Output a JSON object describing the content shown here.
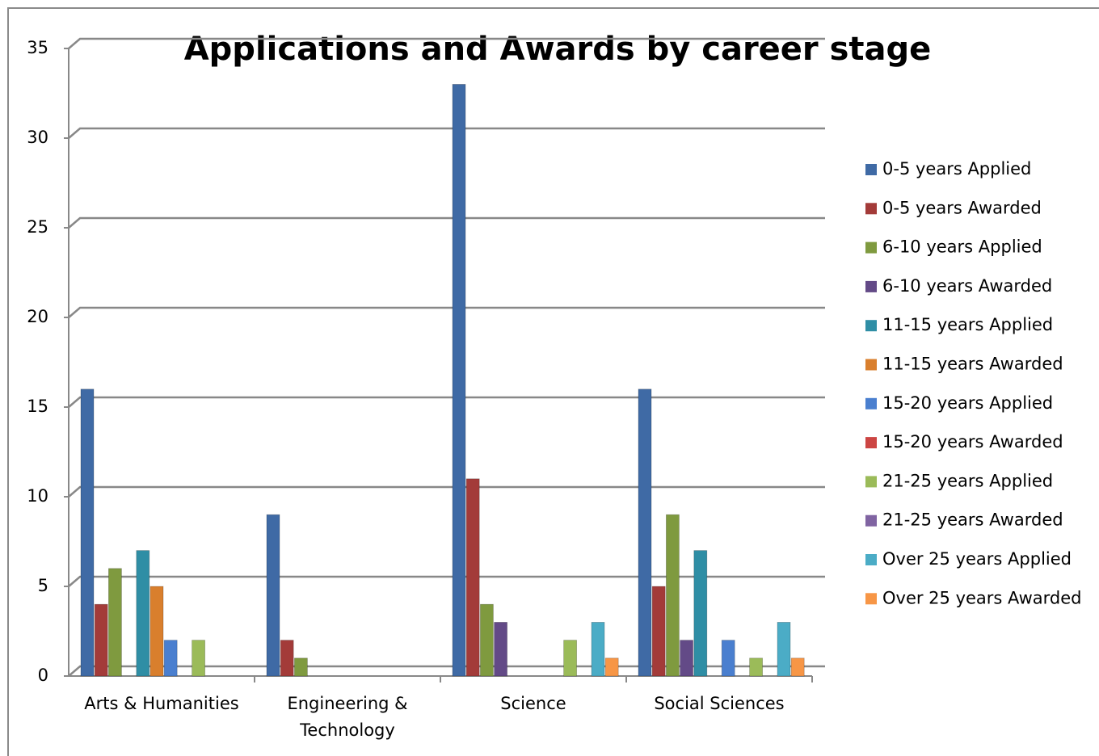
{
  "chart_data": {
    "type": "bar",
    "title": "Applications and Awards by career stage",
    "categories": [
      "Arts & Humanities",
      "Engineering & Technology",
      "Science",
      "Social Sciences"
    ],
    "series": [
      {
        "name": "0-5 years Applied",
        "color": "#3f6aa5",
        "values": [
          16,
          9,
          33,
          16
        ]
      },
      {
        "name": "0-5 years Awarded",
        "color": "#a33b39",
        "values": [
          4,
          2,
          11,
          5
        ]
      },
      {
        "name": "6-10 years Applied",
        "color": "#7f9a3f",
        "values": [
          6,
          1,
          4,
          9
        ]
      },
      {
        "name": "6-10 years Awarded",
        "color": "#634a87",
        "values": [
          0,
          0,
          3,
          2
        ]
      },
      {
        "name": "11-15 years Applied",
        "color": "#2f8ea5",
        "values": [
          7,
          0,
          0,
          7
        ]
      },
      {
        "name": "11-15 years Awarded",
        "color": "#d97f2d",
        "values": [
          5,
          0,
          0,
          0
        ]
      },
      {
        "name": "15-20 years Applied",
        "color": "#4a7fcf",
        "values": [
          2,
          0,
          0,
          2
        ]
      },
      {
        "name": "15-20 years Awarded",
        "color": "#cc4543",
        "values": [
          0,
          0,
          0,
          0
        ]
      },
      {
        "name": "21-25 years Applied",
        "color": "#9bbb59",
        "values": [
          2,
          0,
          2,
          1
        ]
      },
      {
        "name": "21-25 years Awarded",
        "color": "#8064a2",
        "values": [
          0,
          0,
          0,
          0
        ]
      },
      {
        "name": "Over 25 years Applied",
        "color": "#4bacc6",
        "values": [
          0,
          0,
          3,
          3
        ]
      },
      {
        "name": "Over 25 years Awarded",
        "color": "#f79646",
        "values": [
          0,
          0,
          1,
          1
        ]
      }
    ],
    "ylim": [
      0,
      35
    ],
    "yticks": [
      0,
      5,
      10,
      15,
      20,
      25,
      30,
      35
    ],
    "grid": true,
    "legend": "right"
  }
}
